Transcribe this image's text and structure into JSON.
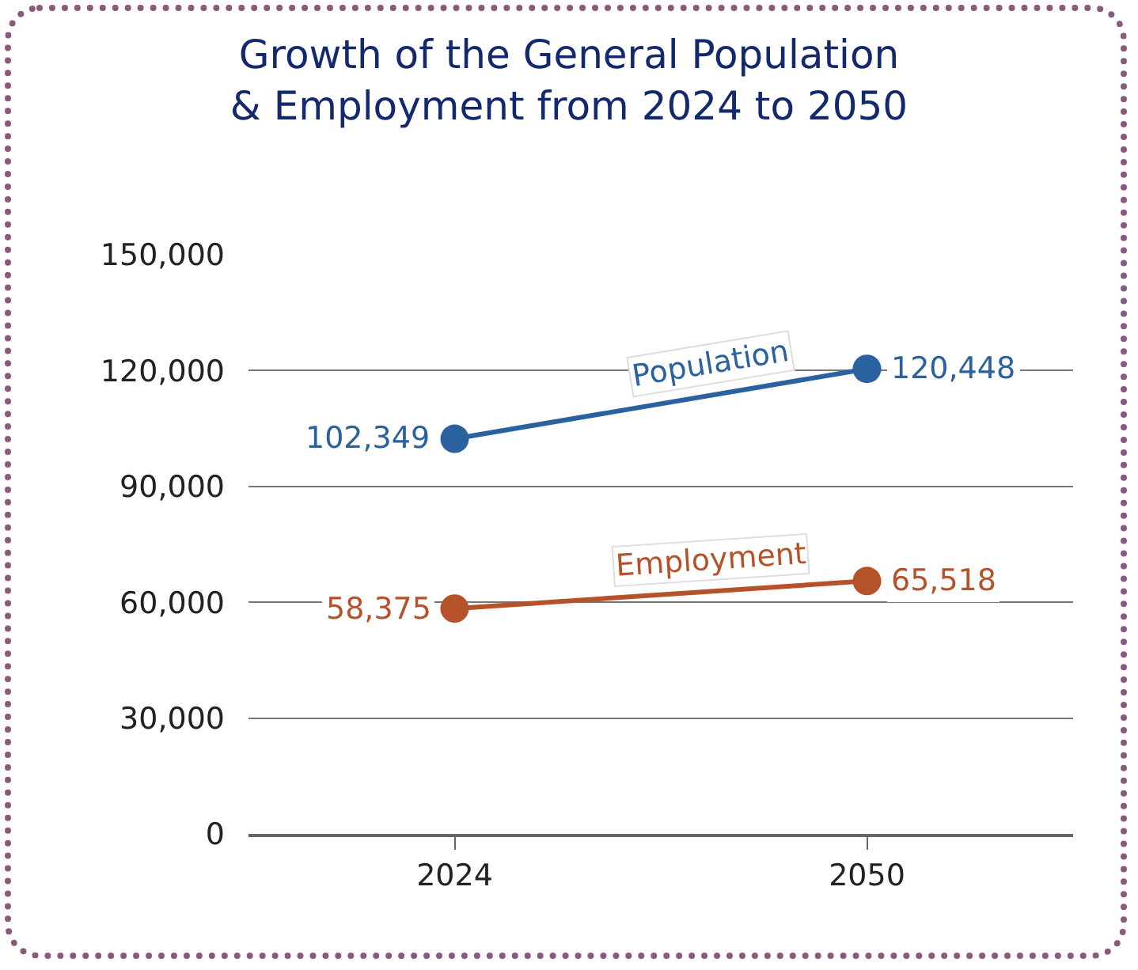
{
  "chart_data": {
    "type": "line",
    "title": "Growth of the General Population\n& Employment from 2024 to 2050",
    "categories": [
      "2024",
      "2050"
    ],
    "series": [
      {
        "name": "Population",
        "color": "#2a62a0",
        "values": [
          102349,
          120448
        ],
        "value_labels": [
          "102,349",
          "120,448"
        ]
      },
      {
        "name": "Employment",
        "color": "#b5522a",
        "values": [
          58375,
          65518
        ],
        "value_labels": [
          "58,375",
          "65,518"
        ]
      }
    ],
    "ylim": [
      0,
      150000
    ],
    "yticks": [
      0,
      {
        "value": 30000,
        "label": "30,000"
      },
      {
        "value": 60000,
        "label": "60,000"
      },
      {
        "value": 90000,
        "label": "90,000"
      },
      {
        "value": 120000,
        "label": "120,000"
      },
      {
        "value": 150000,
        "label": "150,000"
      }
    ],
    "grid": "y",
    "legend": false,
    "marker": "circle",
    "line_style": "solid"
  }
}
